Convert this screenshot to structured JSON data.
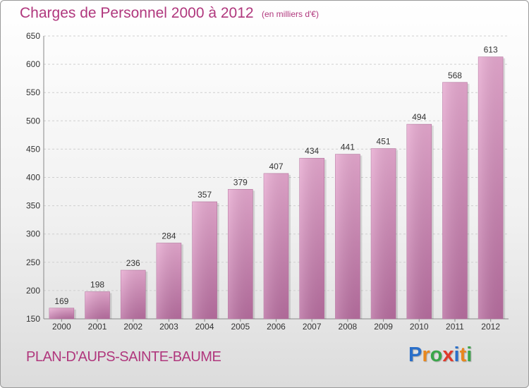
{
  "title": "Charges de Personnel 2000 à 2012",
  "subtitle": "(en milliers d'€)",
  "commune": "PLAN-D'AUPS-SAINTE-BAUME",
  "logo": {
    "letters": [
      "P",
      "r",
      "o",
      "x",
      "i",
      "t",
      "i"
    ],
    "colors": [
      "#2a6fc9",
      "#e8871e",
      "#3aa64a",
      "#e03a2b",
      "#2a6fc9",
      "#e8871e",
      "#3aa64a"
    ]
  },
  "colors": {
    "text_accent": "#b0377d",
    "bar_top": "#e7a9d0",
    "bar_bottom": "#b86ea0",
    "grid": "#cfcfcf"
  },
  "chart_data": {
    "type": "bar",
    "categories": [
      "2000",
      "2001",
      "2002",
      "2003",
      "2004",
      "2005",
      "2006",
      "2007",
      "2008",
      "2009",
      "2010",
      "2011",
      "2012"
    ],
    "values": [
      169,
      198,
      236,
      284,
      357,
      379,
      407,
      434,
      441,
      451,
      494,
      568,
      613
    ],
    "title": "Charges de Personnel 2000 à 2012",
    "subtitle": "(en milliers d'€)",
    "ylim": [
      150,
      650
    ],
    "yticks": [
      150,
      200,
      250,
      300,
      350,
      400,
      450,
      500,
      550,
      600,
      650
    ],
    "grid": true,
    "legend": "none"
  }
}
